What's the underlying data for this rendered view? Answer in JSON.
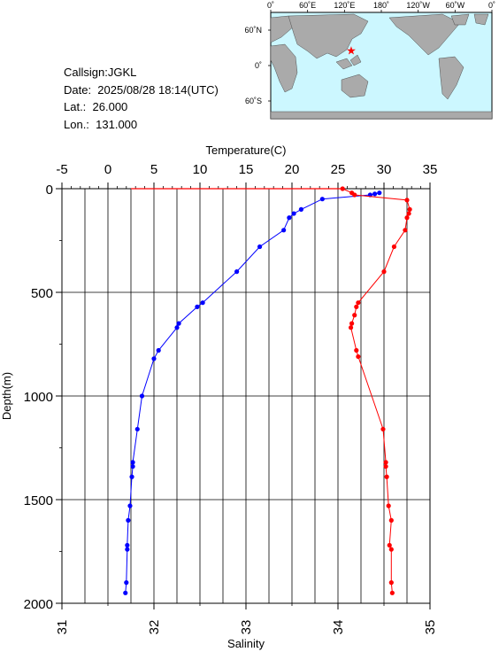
{
  "info": {
    "callsign": "Callsign:JGKL",
    "date": "Date:  2025/08/28 18:14(UTC)",
    "lat": "Lat.:  26.000",
    "lon": "Lon.:  131.000"
  },
  "map": {
    "lon_labels": [
      "0˚",
      "60˚E",
      "120˚E",
      "180˚",
      "120˚W",
      "60˚W",
      "0˚"
    ],
    "lat_labels": [
      "60˚N",
      "0˚",
      "60˚S"
    ],
    "station": {
      "lon": 131.0,
      "lat": 26.0
    },
    "ocean_color": "#ccf7ff",
    "land_color": "#aaaaaa",
    "marker_color": "#ff0000"
  },
  "chart_data": {
    "type": "line",
    "title": "",
    "temperature_axis_label": "Temperature(C)",
    "salinity_axis_label": "Salinity",
    "ylabel": "Depth(m)",
    "temperature_ticks": [
      "-5",
      "0",
      "5",
      "10",
      "15",
      "20",
      "25",
      "30",
      "35"
    ],
    "salinity_ticks": [
      "31",
      "32",
      "33",
      "34",
      "35"
    ],
    "depth_ticks": [
      "0",
      "500",
      "1000",
      "1500",
      "2000"
    ],
    "temperature_range": [
      -5,
      35
    ],
    "salinity_range": [
      31,
      35
    ],
    "depth_range": [
      0,
      2000
    ],
    "grid": true,
    "series": [
      {
        "color": "#0000ff",
        "axis": "temperature",
        "points": [
          [
            29.5,
            20
          ],
          [
            29.0,
            25
          ],
          [
            28.5,
            30
          ],
          [
            23.3,
            50
          ],
          [
            21.0,
            100
          ],
          [
            20.2,
            120
          ],
          [
            19.7,
            140
          ],
          [
            19.1,
            200
          ],
          [
            16.5,
            280
          ],
          [
            14.0,
            400
          ],
          [
            10.3,
            550
          ],
          [
            9.7,
            570
          ],
          [
            7.7,
            650
          ],
          [
            7.5,
            670
          ],
          [
            5.5,
            780
          ],
          [
            5.0,
            820
          ],
          [
            3.7,
            1000
          ],
          [
            3.2,
            1160
          ],
          [
            2.7,
            1320
          ],
          [
            2.7,
            1340
          ],
          [
            2.6,
            1390
          ],
          [
            2.4,
            1530
          ],
          [
            2.2,
            1600
          ],
          [
            2.1,
            1720
          ],
          [
            2.1,
            1740
          ],
          [
            2.0,
            1900
          ],
          [
            1.9,
            1950
          ]
        ]
      },
      {
        "color": "#ff0000",
        "axis": "salinity",
        "points": [
          [
            34.05,
            0
          ],
          [
            34.15,
            20
          ],
          [
            34.18,
            30
          ],
          [
            34.75,
            55
          ],
          [
            34.78,
            100
          ],
          [
            34.77,
            120
          ],
          [
            34.75,
            140
          ],
          [
            34.73,
            200
          ],
          [
            34.61,
            280
          ],
          [
            34.5,
            400
          ],
          [
            34.22,
            550
          ],
          [
            34.2,
            570
          ],
          [
            34.18,
            610
          ],
          [
            34.15,
            650
          ],
          [
            34.14,
            670
          ],
          [
            34.2,
            780
          ],
          [
            34.22,
            810
          ],
          [
            34.49,
            1160
          ],
          [
            34.52,
            1320
          ],
          [
            34.52,
            1340
          ],
          [
            34.53,
            1390
          ],
          [
            34.55,
            1530
          ],
          [
            34.58,
            1600
          ],
          [
            34.56,
            1720
          ],
          [
            34.58,
            1740
          ],
          [
            34.58,
            1900
          ],
          [
            34.59,
            1950
          ]
        ]
      }
    ],
    "surface_line": {
      "temperature": 2.5,
      "salinity": 34.05,
      "depth": 0,
      "color": "#ff0000"
    }
  }
}
